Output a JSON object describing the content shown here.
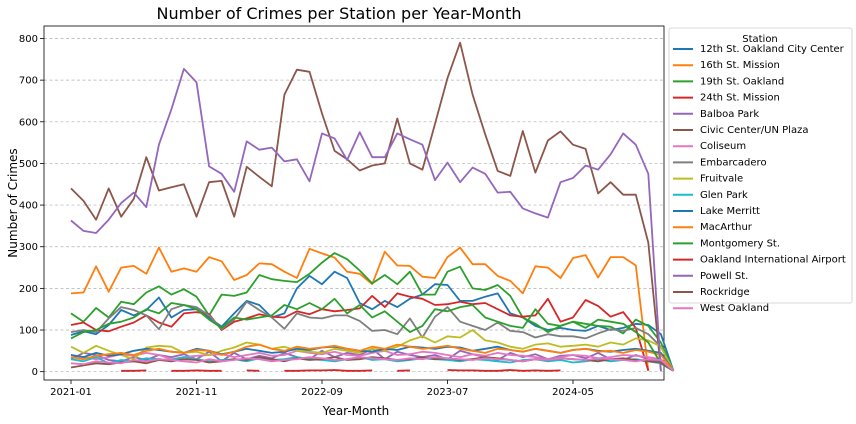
{
  "chart_data": {
    "type": "line",
    "title": "Number of Crimes per Station per Year-Month",
    "xlabel": "Year-Month",
    "ylabel": "Number of Crimes",
    "legend_title": "Station",
    "legend_position": "outside-right",
    "grid": "y-dashed",
    "x_tick_labels": [
      "2021-01",
      "2021-11",
      "2022-09",
      "2023-07",
      "2024-05"
    ],
    "y_ticks": [
      0,
      100,
      200,
      300,
      400,
      500,
      600,
      700,
      800
    ],
    "ylim": [
      -20,
      830
    ],
    "x": [
      "2021-01",
      "2021-02",
      "2021-03",
      "2021-04",
      "2021-05",
      "2021-06",
      "2021-07",
      "2021-08",
      "2021-09",
      "2021-10",
      "2021-11",
      "2021-12",
      "2022-01",
      "2022-02",
      "2022-03",
      "2022-04",
      "2022-05",
      "2022-06",
      "2022-07",
      "2022-08",
      "2022-09",
      "2022-10",
      "2022-11",
      "2022-12",
      "2023-01",
      "2023-02",
      "2023-03",
      "2023-04",
      "2023-05",
      "2023-06",
      "2023-07",
      "2023-08",
      "2023-09",
      "2023-10",
      "2023-11",
      "2023-12",
      "2024-01",
      "2024-02",
      "2024-03",
      "2024-04",
      "2024-05",
      "2024-06",
      "2024-07",
      "2024-08",
      "2024-09",
      "2024-10",
      "2024-11",
      "2024-12",
      "2025-01"
    ],
    "series": [
      {
        "name": "12th St. Oakland City Center",
        "color": "#1f77b4",
        "values": [
          88,
          97,
          90,
          112,
          148,
          135,
          148,
          178,
          130,
          148,
          150,
          130,
          108,
          140,
          170,
          160,
          130,
          140,
          200,
          230,
          210,
          240,
          225,
          165,
          150,
          170,
          155,
          175,
          185,
          210,
          208,
          170,
          170,
          180,
          188,
          140,
          130,
          110,
          100,
          105,
          100,
          98,
          110,
          100,
          105,
          115,
          112,
          90,
          2
        ]
      },
      {
        "name": "16th St. Mission",
        "color": "#ff7f0e",
        "values": [
          188,
          190,
          253,
          192,
          250,
          254,
          235,
          298,
          240,
          248,
          240,
          275,
          265,
          220,
          232,
          260,
          258,
          240,
          225,
          295,
          284,
          274,
          240,
          235,
          210,
          288,
          255,
          254,
          228,
          225,
          275,
          298,
          258,
          258,
          230,
          218,
          188,
          253,
          250,
          225,
          273,
          280,
          226,
          275,
          275,
          255,
          2,
          null,
          null
        ]
      },
      {
        "name": "19th St. Oakland",
        "color": "#2ca02c",
        "values": [
          140,
          120,
          153,
          130,
          168,
          162,
          190,
          205,
          185,
          198,
          180,
          135,
          185,
          182,
          190,
          232,
          222,
          218,
          215,
          235,
          262,
          285,
          270,
          243,
          212,
          232,
          210,
          240,
          185,
          185,
          240,
          252,
          200,
          196,
          208,
          182,
          130,
          115,
          95,
          110,
          120,
          115,
          110,
          108,
          92,
          125,
          110,
          70,
          2
        ]
      },
      {
        "name": "24th St. Mission",
        "color": "#d62728",
        "values": [
          112,
          118,
          100,
          97,
          108,
          118,
          135,
          118,
          108,
          140,
          143,
          138,
          100,
          120,
          128,
          138,
          132,
          130,
          145,
          138,
          150,
          145,
          148,
          152,
          182,
          155,
          188,
          180,
          175,
          160,
          162,
          168,
          162,
          165,
          150,
          135,
          132,
          135,
          175,
          120,
          130,
          172,
          158,
          132,
          143,
          105,
          2,
          null,
          null
        ]
      },
      {
        "name": "Balboa Park",
        "color": "#9467bd",
        "values": [
          30,
          45,
          40,
          28,
          25,
          35,
          28,
          40,
          35,
          42,
          30,
          48,
          25,
          45,
          30,
          38,
          32,
          45,
          35,
          30,
          50,
          35,
          45,
          40,
          55,
          30,
          48,
          40,
          35,
          40,
          30,
          50,
          42,
          35,
          28,
          45,
          35,
          42,
          30,
          38,
          40,
          32,
          45,
          30,
          28,
          40,
          30,
          25,
          2
        ]
      },
      {
        "name": "Civic Center/UN Plaza",
        "color": "#8c564b",
        "values": [
          440,
          410,
          365,
          440,
          372,
          415,
          515,
          435,
          443,
          450,
          372,
          455,
          458,
          372,
          492,
          468,
          445,
          665,
          725,
          720,
          620,
          530,
          510,
          483,
          495,
          500,
          608,
          500,
          485,
          595,
          705,
          790,
          665,
          570,
          482,
          470,
          578,
          478,
          555,
          577,
          545,
          535,
          428,
          455,
          425,
          425,
          310,
          2,
          null
        ]
      },
      {
        "name": "Coliseum",
        "color": "#e377c2",
        "values": [
          40,
          35,
          30,
          35,
          42,
          38,
          45,
          40,
          30,
          35,
          38,
          40,
          42,
          35,
          40,
          45,
          38,
          40,
          50,
          45,
          42,
          48,
          40,
          38,
          45,
          50,
          40,
          42,
          48,
          45,
          40,
          35,
          42,
          38,
          45,
          40,
          38,
          35,
          30,
          35,
          40,
          38,
          32,
          35,
          40,
          38,
          35,
          30,
          2
        ]
      },
      {
        "name": "Embarcadero",
        "color": "#7f7f7f",
        "values": [
          95,
          100,
          95,
          128,
          155,
          148,
          135,
          102,
          150,
          160,
          155,
          135,
          102,
          125,
          168,
          148,
          130,
          103,
          140,
          130,
          128,
          135,
          135,
          122,
          98,
          100,
          90,
          128,
          82,
          132,
          155,
          120,
          110,
          100,
          118,
          98,
          95,
          82,
          90,
          85,
          85,
          80,
          92,
          102,
          98,
          105,
          90,
          60,
          2
        ]
      },
      {
        "name": "Fruitvale",
        "color": "#bcbd22",
        "values": [
          60,
          45,
          62,
          50,
          40,
          30,
          58,
          62,
          60,
          45,
          48,
          40,
          50,
          58,
          70,
          65,
          55,
          60,
          50,
          48,
          45,
          55,
          50,
          45,
          55,
          50,
          60,
          75,
          85,
          70,
          85,
          82,
          100,
          75,
          70,
          60,
          55,
          65,
          68,
          60,
          62,
          65,
          60,
          70,
          65,
          80,
          75,
          60,
          2
        ]
      },
      {
        "name": "Glen Park",
        "color": "#17becf",
        "values": [
          30,
          25,
          35,
          20,
          28,
          25,
          32,
          30,
          28,
          35,
          30,
          25,
          28,
          30,
          25,
          32,
          28,
          30,
          35,
          30,
          28,
          25,
          30,
          35,
          28,
          30,
          25,
          28,
          32,
          30,
          28,
          25,
          30,
          28,
          25,
          22,
          28,
          30,
          25,
          28,
          22,
          25,
          30,
          25,
          28,
          30,
          25,
          20,
          2
        ]
      },
      {
        "name": "Lake Merritt",
        "color": "#1f77b4",
        "values": [
          40,
          35,
          45,
          38,
          42,
          50,
          55,
          52,
          48,
          45,
          55,
          50,
          42,
          48,
          55,
          50,
          45,
          48,
          55,
          52,
          58,
          60,
          55,
          50,
          48,
          55,
          52,
          60,
          58,
          55,
          60,
          58,
          50,
          55,
          60,
          52,
          48,
          55,
          50,
          45,
          52,
          55,
          50,
          48,
          52,
          55,
          50,
          45,
          2
        ]
      },
      {
        "name": "MacArthur",
        "color": "#ff7f0e",
        "values": [
          35,
          30,
          38,
          42,
          45,
          40,
          50,
          55,
          48,
          45,
          52,
          50,
          40,
          48,
          60,
          65,
          55,
          50,
          60,
          55,
          58,
          62,
          55,
          50,
          60,
          55,
          65,
          60,
          55,
          58,
          62,
          55,
          50,
          45,
          55,
          52,
          48,
          55,
          50,
          45,
          52,
          55,
          48,
          50,
          45,
          52,
          48,
          40,
          2
        ]
      },
      {
        "name": "Montgomery St.",
        "color": "#2ca02c",
        "values": [
          80,
          95,
          100,
          115,
          120,
          130,
          150,
          140,
          165,
          160,
          150,
          125,
          105,
          130,
          125,
          130,
          135,
          160,
          150,
          165,
          150,
          175,
          140,
          160,
          130,
          145,
          120,
          95,
          110,
          150,
          145,
          155,
          160,
          130,
          120,
          110,
          105,
          150,
          115,
          110,
          120,
          105,
          125,
          120,
          115,
          95,
          70,
          20,
          2
        ]
      },
      {
        "name": "Oakland International Airport",
        "color": "#d62728",
        "values": [
          null,
          null,
          null,
          null,
          2,
          2,
          3,
          null,
          2,
          2,
          3,
          2,
          2,
          null,
          3,
          2,
          null,
          2,
          2,
          3,
          3,
          4,
          2,
          2,
          3,
          null,
          2,
          3,
          null,
          null,
          4,
          3,
          3,
          2,
          2,
          4,
          2,
          3,
          2,
          3,
          null,
          null,
          null,
          null,
          null,
          null,
          null,
          null,
          null
        ]
      },
      {
        "name": "Powell St.",
        "color": "#9467bd",
        "values": [
          363,
          338,
          333,
          365,
          405,
          430,
          395,
          545,
          630,
          727,
          695,
          493,
          475,
          432,
          553,
          533,
          538,
          505,
          510,
          457,
          572,
          560,
          508,
          575,
          515,
          515,
          572,
          558,
          545,
          460,
          502,
          455,
          490,
          475,
          430,
          432,
          392,
          380,
          370,
          455,
          465,
          495,
          485,
          522,
          572,
          545,
          475,
          2,
          null
        ]
      },
      {
        "name": "Rockridge",
        "color": "#8c564b",
        "values": [
          10,
          15,
          20,
          18,
          22,
          25,
          20,
          28,
          25,
          30,
          28,
          22,
          25,
          30,
          28,
          35,
          30,
          25,
          32,
          28,
          30,
          35,
          28,
          30,
          35,
          32,
          28,
          30,
          35,
          30,
          32,
          28,
          30,
          35,
          32,
          28,
          25,
          30,
          28,
          32,
          30,
          28,
          25,
          30,
          32,
          28,
          25,
          22,
          2
        ]
      },
      {
        "name": "West Oakland",
        "color": "#e377c2",
        "values": [
          20,
          18,
          25,
          22,
          20,
          28,
          25,
          30,
          28,
          25,
          22,
          30,
          25,
          28,
          32,
          30,
          25,
          28,
          30,
          35,
          32,
          28,
          30,
          35,
          32,
          30,
          28,
          32,
          30,
          35,
          32,
          30,
          28,
          32,
          30,
          28,
          25,
          30,
          28,
          32,
          30,
          28,
          32,
          30,
          28,
          25,
          30,
          28,
          2
        ]
      }
    ]
  }
}
